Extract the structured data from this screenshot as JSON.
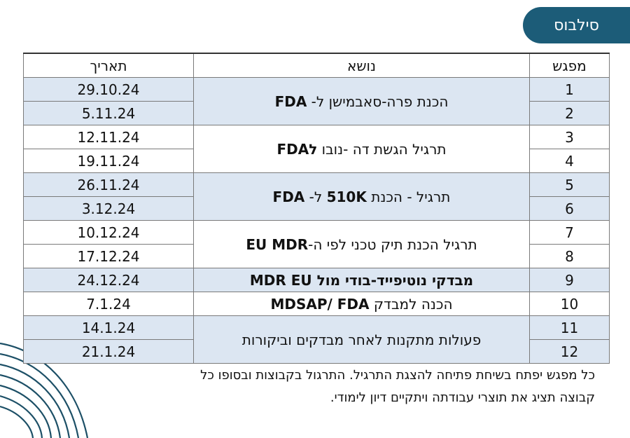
{
  "badge": "סילבוס",
  "headers": {
    "date": "תאריך",
    "topic": "נושא",
    "meeting": "מפגש"
  },
  "rows": [
    {
      "num": "1",
      "date": "29.10.24",
      "shade": "blue",
      "topic_span": 2,
      "topic_html": "הכנת פרה-סאבמישן ל- <b>FDA</b>"
    },
    {
      "num": "2",
      "date": "5.11.24",
      "shade": "blue"
    },
    {
      "num": "3",
      "date": "12.11.24",
      "shade": "white",
      "topic_span": 2,
      "topic_html": "תרגיל הגשת דה -נובו <b>לFDA</b>"
    },
    {
      "num": "4",
      "date": "19.11.24",
      "shade": "white"
    },
    {
      "num": "5",
      "date": "26.11.24",
      "shade": "blue",
      "topic_span": 2,
      "topic_html": "תרגיל - הכנת <b>510K</b> ל- <b>FDA</b>"
    },
    {
      "num": "6",
      "date": "3.12.24",
      "shade": "blue"
    },
    {
      "num": "7",
      "date": "10.12.24",
      "shade": "white",
      "topic_span": 2,
      "topic_html": "תרגיל הכנת תיק טכני לפי ה-<b>EU MDR</b>"
    },
    {
      "num": "8",
      "date": "17.12.24",
      "shade": "white"
    },
    {
      "num": "9",
      "date": "24.12.24",
      "shade": "blue",
      "topic_span": 1,
      "topic_html": "<b>מבדקי נוטיפייד-בודי מול MDR EU</b>"
    },
    {
      "num": "10",
      "date": "7.1.24",
      "shade": "white",
      "topic_span": 1,
      "topic_html": "הכנה למבדק <b>MDSAP/ FDA</b>"
    },
    {
      "num": "11",
      "date": "14.1.24",
      "shade": "blue",
      "topic_span": 2,
      "topic_html": "פעולות מתקנות לאחר מבדקים וביקורות"
    },
    {
      "num": "12",
      "date": "21.1.24",
      "shade": "blue"
    }
  ],
  "note": "כל מפגש יפתח בשיחת פתיחה להצגת התרגיל. התרגול בקבוצות ובסופו כל קבוצה תציג את תוצרי עבודתה ויתקיים דיון לימודי."
}
